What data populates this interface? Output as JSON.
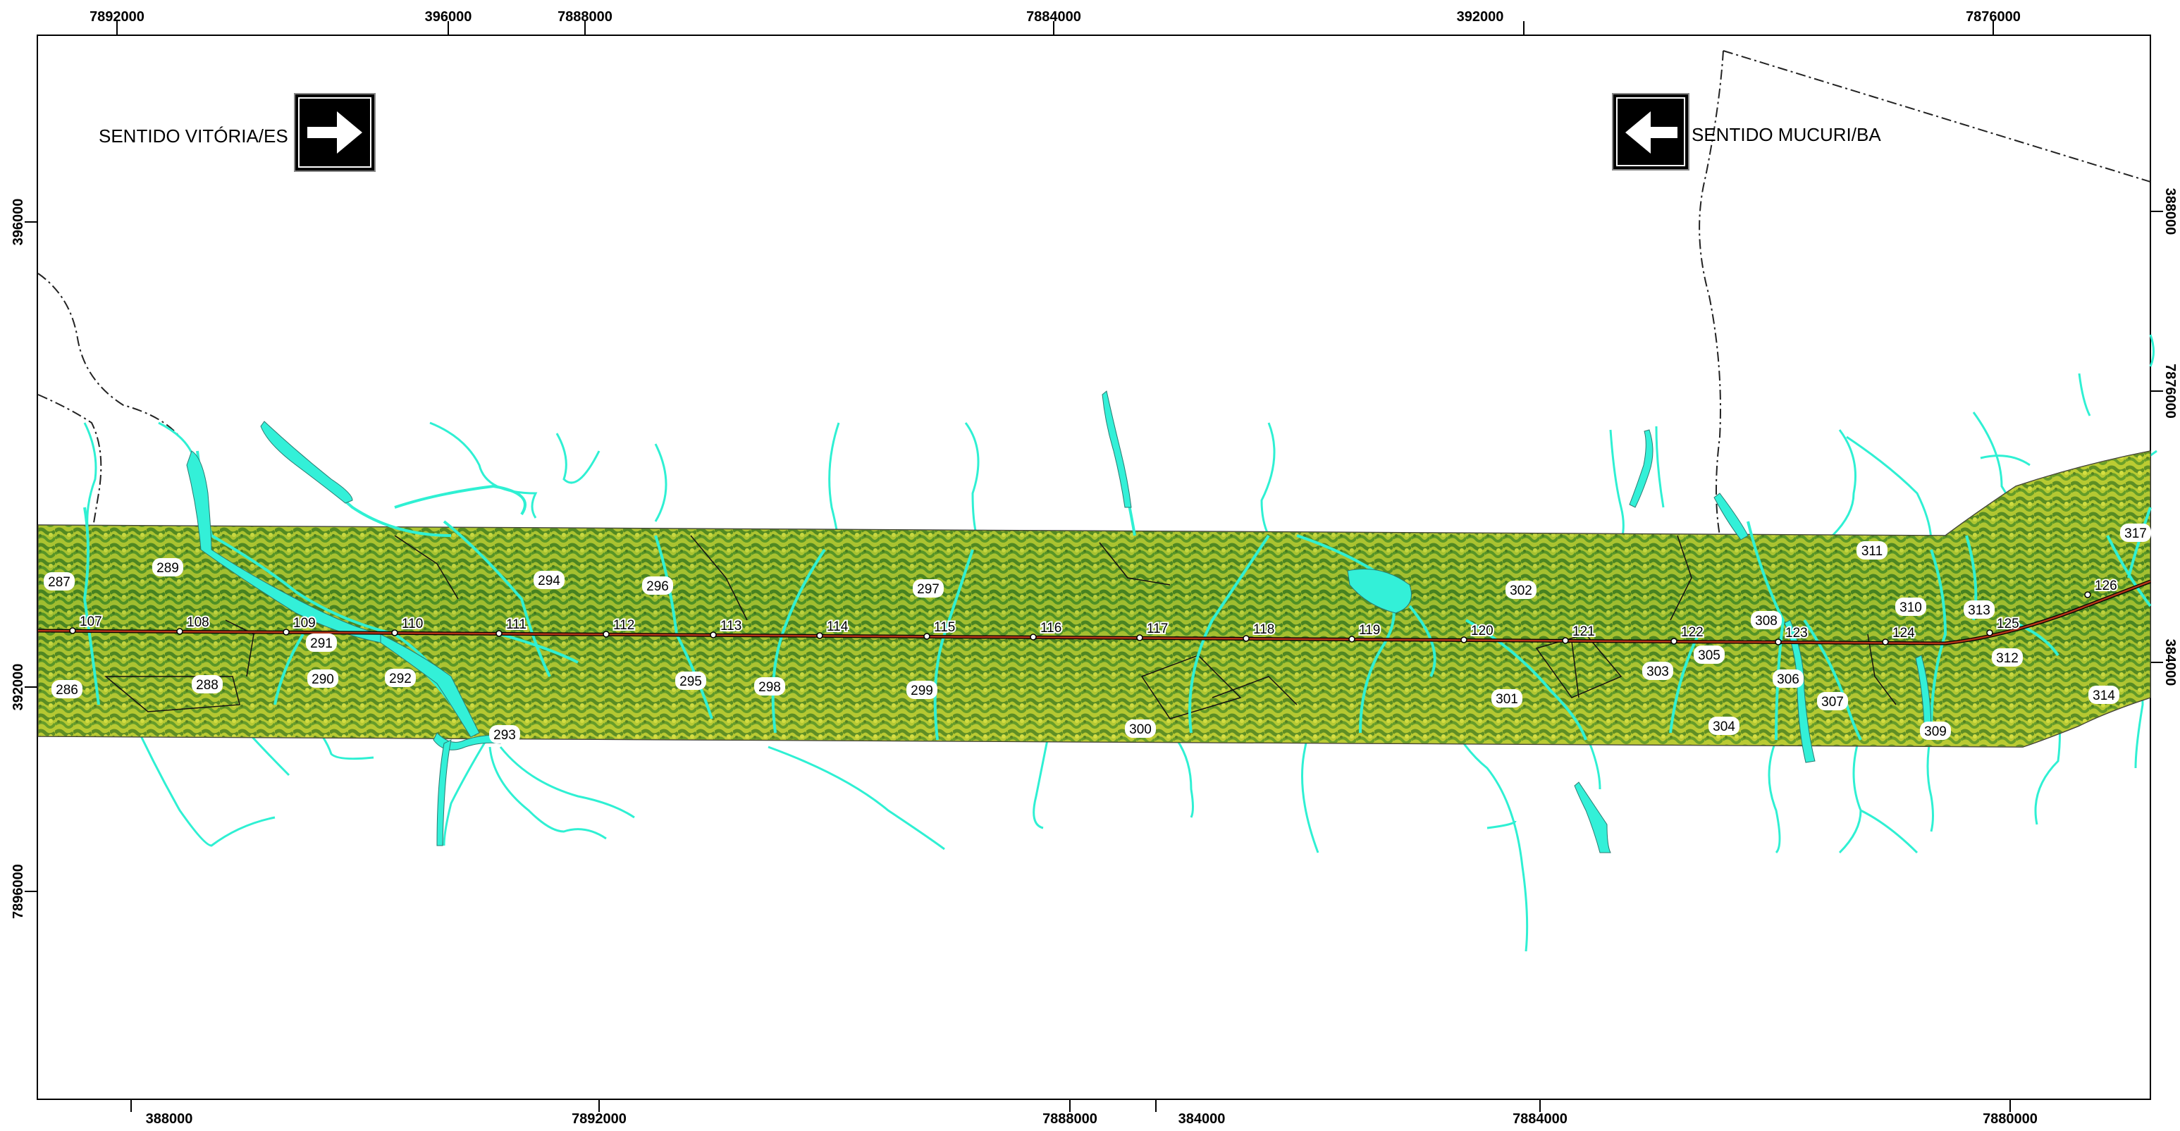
{
  "map": {
    "directions": {
      "east": {
        "label": "SENTIDO VITÓRIA/ES",
        "icon": "arrow-right-icon"
      },
      "west": {
        "label": "SENTIDO MUCURI/BA",
        "icon": "arrow-left-icon"
      }
    },
    "top_ticks": [
      "7892000",
      "396000",
      "7888000",
      "7884000",
      "392000",
      "7876000"
    ],
    "bottom_ticks": [
      "388000",
      "7892000",
      "7888000",
      "384000",
      "7884000",
      "7880000"
    ],
    "left_ticks": [
      "396000",
      "7896000",
      "392000"
    ],
    "right_ticks": [
      "388000",
      "7876000",
      "384000"
    ],
    "km_markers": [
      "107",
      "108",
      "109",
      "110",
      "111",
      "112",
      "113",
      "114",
      "115",
      "116",
      "117",
      "118",
      "119",
      "120",
      "121",
      "122",
      "123",
      "124",
      "125",
      "126"
    ],
    "point_labels": [
      "286",
      "287",
      "288",
      "289",
      "290",
      "291",
      "292",
      "293",
      "294",
      "295",
      "296",
      "297",
      "298",
      "299",
      "300",
      "301",
      "302",
      "303",
      "304",
      "305",
      "306",
      "307",
      "308",
      "309",
      "310",
      "311",
      "312",
      "313",
      "314",
      "317"
    ],
    "colors": {
      "water": "#33f0d8",
      "road": "#8b1a1a",
      "terrain_dark": "#2f7a1e",
      "terrain_light": "#d8e23a",
      "boundary": "#222222"
    }
  }
}
